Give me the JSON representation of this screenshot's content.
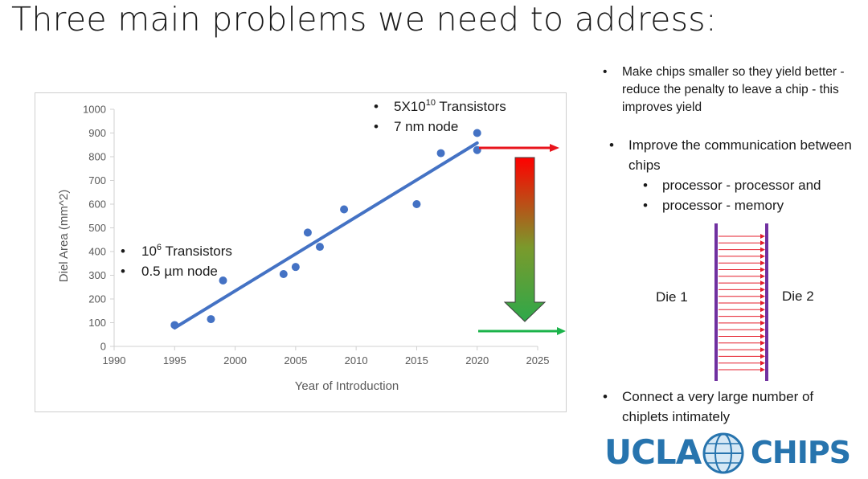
{
  "slide": {
    "title": "Three main problems we need to address:"
  },
  "chart_data": {
    "type": "scatter",
    "xlabel": "Year of Introduction",
    "ylabel": "Diel Area (mm^2)",
    "xlim": [
      1990,
      2025
    ],
    "ylim": [
      0,
      1000
    ],
    "x_ticks": [
      1990,
      1995,
      2000,
      2005,
      2010,
      2015,
      2020,
      2025
    ],
    "y_ticks": [
      0,
      100,
      200,
      300,
      400,
      500,
      600,
      700,
      800,
      900,
      1000
    ],
    "grid": false,
    "points": [
      {
        "x": 1995,
        "y": 90
      },
      {
        "x": 1998,
        "y": 115
      },
      {
        "x": 1999,
        "y": 278
      },
      {
        "x": 2004,
        "y": 305
      },
      {
        "x": 2005,
        "y": 335
      },
      {
        "x": 2006,
        "y": 480
      },
      {
        "x": 2007,
        "y": 420
      },
      {
        "x": 2009,
        "y": 578
      },
      {
        "x": 2015,
        "y": 600
      },
      {
        "x": 2017,
        "y": 815
      },
      {
        "x": 2020,
        "y": 900
      },
      {
        "x": 2020,
        "y": 828
      }
    ],
    "trendline": {
      "x": [
        1995,
        2020
      ],
      "y": [
        78,
        858
      ]
    },
    "annotations": {
      "upper": [
        {
          "text": "5X10",
          "sup": "10",
          "rest": " Transistors"
        },
        {
          "text": "7 nm node",
          "sup": "",
          "rest": ""
        }
      ],
      "lower": [
        {
          "text": "10",
          "sup": "6",
          "rest": " Transistors"
        },
        {
          "text": "0.5 µm node",
          "sup": "",
          "rest": ""
        }
      ]
    },
    "colors": {
      "points": "#4472c4",
      "trendline": "#4472c4",
      "axis": "#d0d0d0",
      "arrow_high": "#e8141c",
      "arrow_low": "#1bb34a"
    }
  },
  "bullets": {
    "yield": "Make chips smaller so they yield better - reduce the penalty to leave a chip - this improves yield",
    "communication": "Improve the communication between chips",
    "comm_sub_1": "processor - processor and",
    "comm_sub_2": "processor - memory",
    "chiplets": "Connect a very large number of chiplets intimately"
  },
  "diagram": {
    "die1": "Die 1",
    "die2": "Die 2",
    "link_count": 21,
    "colors": {
      "die_edge": "#7030a0",
      "links": "#e41e2b"
    }
  },
  "logo": {
    "ucla": "UCLA",
    "chips": "CHIPS"
  }
}
